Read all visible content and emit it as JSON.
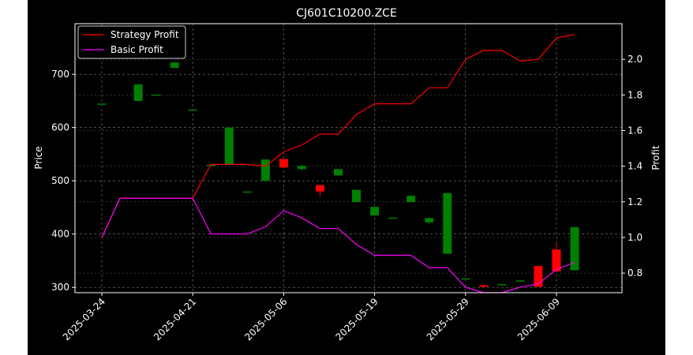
{
  "chart_data": {
    "type": "candlestick+line",
    "title": "CJ601C10200.ZCE",
    "xlabel": "",
    "ylabel_left": "Price",
    "ylabel_right": "Profit",
    "ylim_left": [
      290,
      795
    ],
    "ylim_right": [
      0.69,
      2.2
    ],
    "yticks_left": [
      300,
      400,
      500,
      600,
      700
    ],
    "yticks_right": [
      0.8,
      1.0,
      1.2,
      1.4,
      1.6,
      1.8,
      2.0
    ],
    "x_tick_labels": [
      "2025-03-24",
      "2025-04-21",
      "2025-05-06",
      "2025-05-19",
      "2025-05-29",
      "2025-06-09"
    ],
    "x_tick_index": [
      0,
      5,
      10,
      15,
      20,
      25
    ],
    "grid": true,
    "legend_position": "top-left",
    "up_color": "#008000",
    "down_color": "#ff0000",
    "candles": [
      {
        "i": 0,
        "open": 645,
        "high": 645,
        "low": 645,
        "close": 645
      },
      {
        "i": 2,
        "open": 650,
        "high": 681,
        "low": 650,
        "close": 681
      },
      {
        "i": 3,
        "open": 662,
        "high": 662,
        "low": 662,
        "close": 662
      },
      {
        "i": 4,
        "open": 712,
        "high": 722,
        "low": 712,
        "close": 722
      },
      {
        "i": 5,
        "open": 634,
        "high": 634,
        "low": 634,
        "close": 634
      },
      {
        "i": 6,
        "open": 530,
        "high": 530,
        "low": 530,
        "close": 530
      },
      {
        "i": 7,
        "open": 530,
        "high": 600,
        "low": 530,
        "close": 600
      },
      {
        "i": 8,
        "open": 480,
        "high": 480,
        "low": 480,
        "close": 480
      },
      {
        "i": 9,
        "open": 500,
        "high": 540,
        "low": 500,
        "close": 540
      },
      {
        "i": 10,
        "open": 541,
        "high": 541,
        "low": 525,
        "close": 525
      },
      {
        "i": 11,
        "open": 522,
        "high": 530,
        "low": 520,
        "close": 528
      },
      {
        "i": 12,
        "open": 492,
        "high": 492,
        "low": 470,
        "close": 480
      },
      {
        "i": 13,
        "open": 510,
        "high": 522,
        "low": 510,
        "close": 522
      },
      {
        "i": 14,
        "open": 460,
        "high": 483,
        "low": 460,
        "close": 483
      },
      {
        "i": 15,
        "open": 435,
        "high": 451,
        "low": 435,
        "close": 451
      },
      {
        "i": 16,
        "open": 431,
        "high": 431,
        "low": 431,
        "close": 431
      },
      {
        "i": 17,
        "open": 460,
        "high": 472,
        "low": 460,
        "close": 472
      },
      {
        "i": 18,
        "open": 422,
        "high": 432,
        "low": 418,
        "close": 430
      },
      {
        "i": 19,
        "open": 363,
        "high": 477,
        "low": 363,
        "close": 477
      },
      {
        "i": 20,
        "open": 317,
        "high": 317,
        "low": 317,
        "close": 317
      },
      {
        "i": 21,
        "open": 304,
        "high": 304,
        "low": 300,
        "close": 301
      },
      {
        "i": 22,
        "open": 306,
        "high": 306,
        "low": 306,
        "close": 306
      },
      {
        "i": 23,
        "open": 313,
        "high": 313,
        "low": 313,
        "close": 313
      },
      {
        "i": 24,
        "open": 340,
        "high": 340,
        "low": 301,
        "close": 301
      },
      {
        "i": 25,
        "open": 371,
        "high": 382,
        "low": 330,
        "close": 330
      },
      {
        "i": 26,
        "open": 332,
        "high": 413,
        "low": 332,
        "close": 413
      }
    ],
    "series": [
      {
        "name": "Strategy Profit",
        "color": "#ff0000",
        "x": [
          0,
          1,
          2,
          3,
          4,
          5,
          6,
          7,
          8,
          9,
          10,
          11,
          12,
          13,
          14,
          15,
          16,
          17,
          18,
          19,
          20,
          21,
          22,
          23,
          24,
          25,
          26
        ],
        "values": [
          1.0,
          1.22,
          1.22,
          1.22,
          1.22,
          1.22,
          1.41,
          1.41,
          1.41,
          1.4,
          1.48,
          1.52,
          1.58,
          1.58,
          1.69,
          1.75,
          1.75,
          1.75,
          1.84,
          1.84,
          2.0,
          2.05,
          2.05,
          1.99,
          2.0,
          2.12,
          2.14
        ]
      },
      {
        "name": "Basic Profit",
        "color": "#ff00ff",
        "x": [
          0,
          1,
          2,
          3,
          4,
          5,
          6,
          7,
          8,
          9,
          10,
          11,
          12,
          13,
          14,
          15,
          16,
          17,
          18,
          19,
          20,
          21,
          22,
          23,
          24,
          25,
          26
        ],
        "values": [
          1.0,
          1.22,
          1.22,
          1.22,
          1.22,
          1.22,
          1.02,
          1.02,
          1.02,
          1.06,
          1.15,
          1.11,
          1.05,
          1.05,
          0.96,
          0.9,
          0.9,
          0.9,
          0.83,
          0.83,
          0.72,
          0.69,
          0.69,
          0.72,
          0.74,
          0.82,
          0.86
        ]
      }
    ]
  }
}
